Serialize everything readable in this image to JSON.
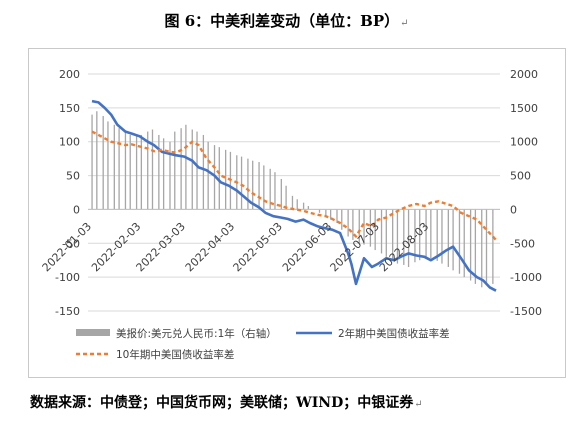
{
  "title": "图 6：中美利差变动（单位：BP）",
  "edit_mark": "↵",
  "source": "数据来源：中债登；中国货币网；美联储；WIND；中银证券",
  "chart_data": {
    "type": "bar+line",
    "title": "",
    "left_axis": {
      "ylim": [
        -150,
        200
      ],
      "ticks": [
        -150,
        -100,
        -50,
        0,
        50,
        100,
        150,
        200
      ]
    },
    "right_axis": {
      "ylim": [
        -1500,
        2000
      ],
      "ticks": [
        -1500,
        -1000,
        -500,
        0,
        500,
        1000,
        1500,
        2000
      ]
    },
    "x_ticks": [
      "2022-01-03",
      "2022-02-03",
      "2022-03-03",
      "2022-04-03",
      "2022-05-03",
      "2022-06-03",
      "2022-07-03",
      "2022-08-03"
    ],
    "x_range": [
      "2022-01-03",
      "2022-09-14"
    ],
    "grid": "horizontal",
    "legend_position": "bottom",
    "series": [
      {
        "name": "美报价:美元兑人民币:1年（右轴）",
        "type": "bar",
        "axis": "right",
        "color": "#a6a6a6",
        "x": [
          "2022-01-03",
          "2022-01-06",
          "2022-01-10",
          "2022-01-13",
          "2022-01-17",
          "2022-01-20",
          "2022-01-24",
          "2022-01-27",
          "2022-01-31",
          "2022-02-03",
          "2022-02-07",
          "2022-02-10",
          "2022-02-14",
          "2022-02-17",
          "2022-02-21",
          "2022-02-24",
          "2022-02-28",
          "2022-03-03",
          "2022-03-07",
          "2022-03-10",
          "2022-03-14",
          "2022-03-17",
          "2022-03-21",
          "2022-03-24",
          "2022-03-28",
          "2022-03-31",
          "2022-04-04",
          "2022-04-07",
          "2022-04-11",
          "2022-04-14",
          "2022-04-18",
          "2022-04-21",
          "2022-04-25",
          "2022-04-28",
          "2022-05-02",
          "2022-05-05",
          "2022-05-09",
          "2022-05-12",
          "2022-05-16",
          "2022-05-19",
          "2022-05-23",
          "2022-05-26",
          "2022-05-30",
          "2022-06-02",
          "2022-06-06",
          "2022-06-09",
          "2022-06-13",
          "2022-06-16",
          "2022-06-20",
          "2022-06-23",
          "2022-06-27",
          "2022-06-30",
          "2022-07-04",
          "2022-07-07",
          "2022-07-11",
          "2022-07-14",
          "2022-07-18",
          "2022-07-21",
          "2022-07-25",
          "2022-07-28",
          "2022-08-01",
          "2022-08-04",
          "2022-08-08",
          "2022-08-11",
          "2022-08-15",
          "2022-08-18",
          "2022-08-22",
          "2022-08-25",
          "2022-08-29",
          "2022-09-01",
          "2022-09-05",
          "2022-09-08",
          "2022-09-12"
        ],
        "values": [
          1400,
          1450,
          1380,
          1300,
          1250,
          1200,
          1150,
          1100,
          1080,
          1100,
          1150,
          1180,
          1100,
          1050,
          1000,
          1150,
          1200,
          1250,
          1180,
          1150,
          1100,
          1000,
          950,
          920,
          880,
          850,
          800,
          780,
          750,
          720,
          700,
          650,
          600,
          550,
          450,
          350,
          200,
          150,
          100,
          50,
          0,
          -50,
          -100,
          -150,
          -200,
          -300,
          -400,
          -450,
          -500,
          -520,
          -550,
          -600,
          -650,
          -700,
          -750,
          -800,
          -820,
          -850,
          -780,
          -750,
          -700,
          -720,
          -760,
          -800,
          -850,
          -900,
          -950,
          -1000,
          -1050,
          -1100,
          -1150,
          -1120,
          -1100
        ]
      },
      {
        "name": "2年期中美国债收益率差",
        "type": "line",
        "axis": "left",
        "color": "#4472c4",
        "x": [
          "2022-01-03",
          "2022-01-07",
          "2022-01-11",
          "2022-01-15",
          "2022-01-19",
          "2022-01-24",
          "2022-01-28",
          "2022-02-02",
          "2022-02-07",
          "2022-02-11",
          "2022-02-16",
          "2022-02-21",
          "2022-02-25",
          "2022-03-02",
          "2022-03-07",
          "2022-03-11",
          "2022-03-16",
          "2022-03-21",
          "2022-03-25",
          "2022-03-30",
          "2022-04-04",
          "2022-04-08",
          "2022-04-13",
          "2022-04-18",
          "2022-04-22",
          "2022-04-27",
          "2022-05-02",
          "2022-05-06",
          "2022-05-11",
          "2022-05-16",
          "2022-05-20",
          "2022-05-25",
          "2022-05-30",
          "2022-06-03",
          "2022-06-08",
          "2022-06-13",
          "2022-06-15",
          "2022-06-18",
          "2022-06-23",
          "2022-06-28",
          "2022-07-02",
          "2022-07-07",
          "2022-07-12",
          "2022-07-16",
          "2022-07-21",
          "2022-07-26",
          "2022-07-31",
          "2022-08-04",
          "2022-08-09",
          "2022-08-14",
          "2022-08-18",
          "2022-08-23",
          "2022-08-28",
          "2022-09-02",
          "2022-09-06",
          "2022-09-10",
          "2022-09-14"
        ],
        "values": [
          160,
          158,
          150,
          140,
          125,
          115,
          112,
          108,
          100,
          95,
          85,
          82,
          80,
          78,
          72,
          62,
          58,
          50,
          40,
          35,
          28,
          20,
          10,
          3,
          -5,
          -10,
          -12,
          -14,
          -18,
          -15,
          -20,
          -25,
          -28,
          -30,
          -35,
          -65,
          -80,
          -110,
          -72,
          -85,
          -80,
          -72,
          -75,
          -70,
          -65,
          -68,
          -70,
          -75,
          -68,
          -60,
          -55,
          -72,
          -90,
          -100,
          -105,
          -115,
          -120
        ]
      },
      {
        "name": "10年期中美国债收益率差",
        "type": "line",
        "axis": "left",
        "color": "#ed7d31",
        "dashed": true,
        "x": [
          "2022-01-03",
          "2022-01-07",
          "2022-01-11",
          "2022-01-15",
          "2022-01-19",
          "2022-01-24",
          "2022-01-28",
          "2022-02-02",
          "2022-02-07",
          "2022-02-11",
          "2022-02-16",
          "2022-02-21",
          "2022-02-25",
          "2022-03-02",
          "2022-03-07",
          "2022-03-11",
          "2022-03-16",
          "2022-03-21",
          "2022-03-25",
          "2022-03-30",
          "2022-04-04",
          "2022-04-08",
          "2022-04-13",
          "2022-04-18",
          "2022-04-22",
          "2022-04-27",
          "2022-05-02",
          "2022-05-06",
          "2022-05-11",
          "2022-05-16",
          "2022-05-20",
          "2022-05-25",
          "2022-05-30",
          "2022-06-03",
          "2022-06-08",
          "2022-06-13",
          "2022-06-18",
          "2022-06-23",
          "2022-06-28",
          "2022-07-02",
          "2022-07-07",
          "2022-07-12",
          "2022-07-16",
          "2022-07-21",
          "2022-07-26",
          "2022-07-31",
          "2022-08-04",
          "2022-08-09",
          "2022-08-14",
          "2022-08-18",
          "2022-08-23",
          "2022-08-28",
          "2022-09-02",
          "2022-09-06",
          "2022-09-10",
          "2022-09-14"
        ],
        "values": [
          115,
          110,
          105,
          100,
          98,
          95,
          96,
          93,
          90,
          86,
          88,
          85,
          84,
          90,
          100,
          95,
          75,
          62,
          50,
          45,
          40,
          35,
          25,
          18,
          12,
          8,
          5,
          2,
          0,
          -2,
          -5,
          -8,
          -10,
          -14,
          -20,
          -28,
          -40,
          -20,
          -25,
          -15,
          -12,
          -5,
          0,
          5,
          8,
          5,
          10,
          12,
          8,
          5,
          -5,
          -10,
          -15,
          -25,
          -35,
          -45
        ]
      }
    ]
  }
}
